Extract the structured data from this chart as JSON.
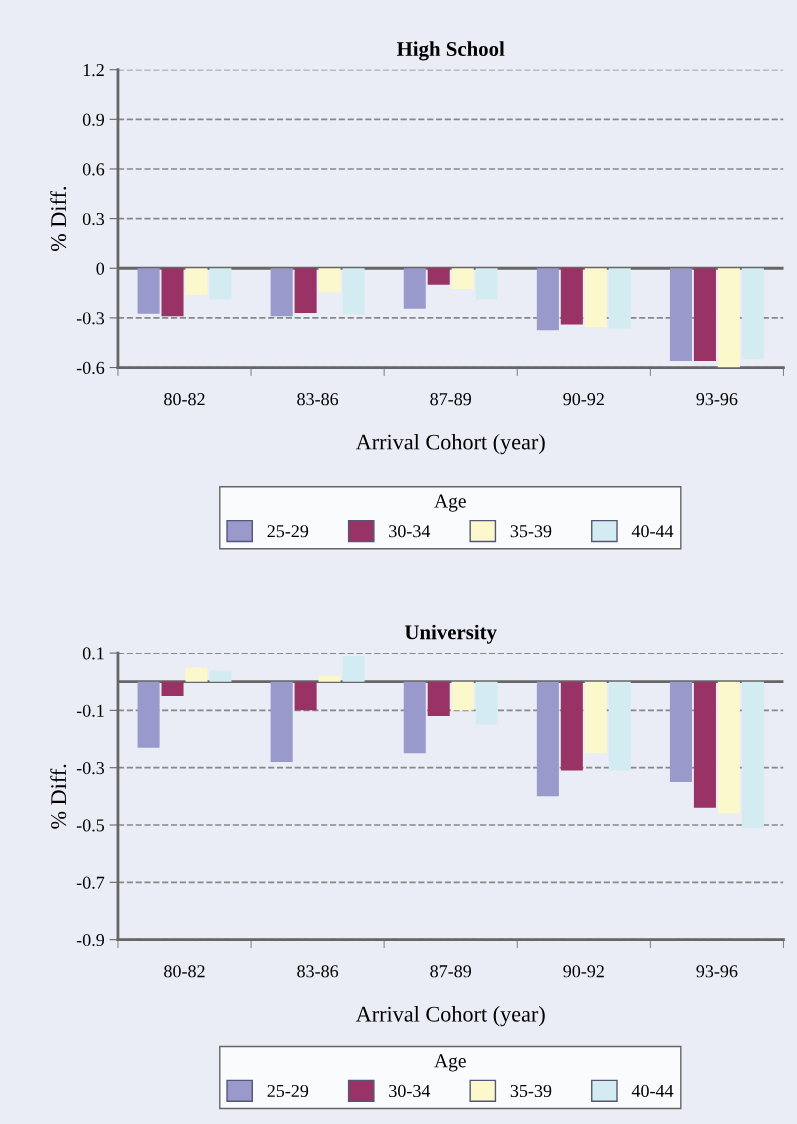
{
  "chart_data": [
    {
      "type": "bar",
      "title": "High School",
      "xlabel": "Arrival Cohort (year)",
      "ylabel": "% Diff.",
      "legend_title": "Age",
      "categories": [
        "80-82",
        "83-86",
        "87-89",
        "90-92",
        "93-96"
      ],
      "series": [
        {
          "name": "25-29",
          "color": "#9999cc",
          "values": [
            -0.275,
            -0.29,
            -0.245,
            -0.375,
            -0.56
          ]
        },
        {
          "name": "30-34",
          "color": "#993366",
          "values": [
            -0.29,
            -0.27,
            -0.1,
            -0.34,
            -0.56
          ]
        },
        {
          "name": "35-39",
          "color": "#fbf8cc",
          "values": [
            -0.16,
            -0.145,
            -0.125,
            -0.355,
            -0.6
          ]
        },
        {
          "name": "40-44",
          "color": "#d3ecf2",
          "values": [
            -0.19,
            -0.28,
            -0.19,
            -0.365,
            -0.55
          ]
        }
      ],
      "ylim": [
        -0.6,
        1.2
      ],
      "yticks": [
        -0.6,
        -0.3,
        0,
        0.3,
        0.6,
        0.9,
        1.2
      ],
      "grid": "y",
      "legend": "bottom"
    },
    {
      "type": "bar",
      "title": "University",
      "xlabel": "Arrival Cohort (year)",
      "ylabel": "% Diff.",
      "legend_title": "Age",
      "categories": [
        "80-82",
        "83-86",
        "87-89",
        "90-92",
        "93-96"
      ],
      "series": [
        {
          "name": "25-29",
          "color": "#9999cc",
          "values": [
            -0.23,
            -0.28,
            -0.25,
            -0.4,
            -0.35
          ]
        },
        {
          "name": "30-34",
          "color": "#993366",
          "values": [
            -0.05,
            -0.1,
            -0.12,
            -0.31,
            -0.44
          ]
        },
        {
          "name": "35-39",
          "color": "#fbf8cc",
          "values": [
            0.05,
            0.02,
            -0.1,
            -0.25,
            -0.46
          ]
        },
        {
          "name": "40-44",
          "color": "#d3ecf2",
          "values": [
            0.04,
            0.09,
            -0.15,
            -0.31,
            -0.51
          ]
        }
      ],
      "ylim": [
        -0.9,
        0.1
      ],
      "yticks": [
        -0.9,
        -0.7,
        -0.5,
        -0.3,
        -0.1,
        0.1
      ],
      "grid": "y",
      "legend": "bottom"
    }
  ]
}
